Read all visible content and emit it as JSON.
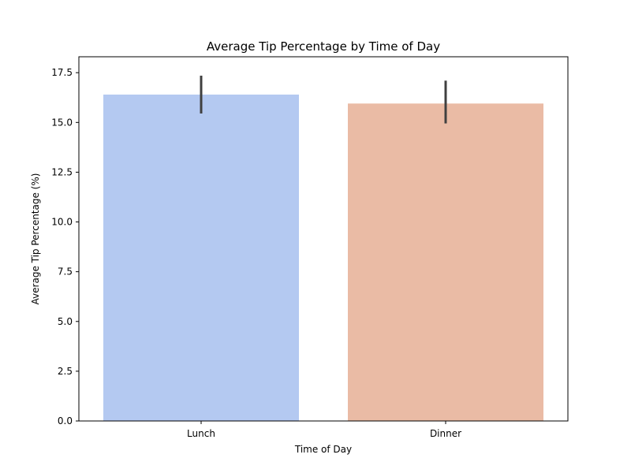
{
  "chart_data": {
    "type": "bar",
    "title": "Average Tip Percentage by Time of Day",
    "xlabel": "Time of Day",
    "ylabel": "Average Tip Percentage (%)",
    "categories": [
      "Lunch",
      "Dinner"
    ],
    "values": [
      16.4,
      15.95
    ],
    "error_bars": [
      {
        "low": 15.45,
        "high": 17.35
      },
      {
        "low": 14.95,
        "high": 17.1
      }
    ],
    "ylim": [
      0,
      18.3
    ],
    "yticks": [
      "0.0",
      "2.5",
      "5.0",
      "7.5",
      "10.0",
      "12.5",
      "15.0",
      "17.5"
    ],
    "colors": [
      "#b4c9f1",
      "#eabba5"
    ],
    "error_color": "#404040",
    "grid": false,
    "legend": "none"
  }
}
